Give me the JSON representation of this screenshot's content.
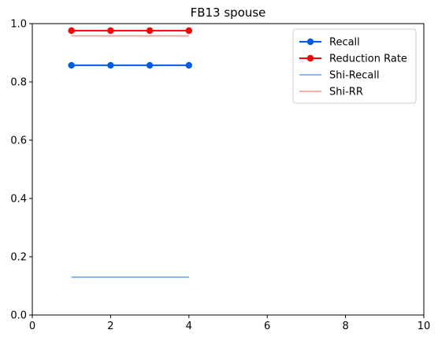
{
  "chart_data": {
    "type": "line",
    "title": "FB13 spouse",
    "xlabel": "",
    "ylabel": "",
    "xlim": [
      0,
      10
    ],
    "ylim": [
      0,
      1.0
    ],
    "xticks": [
      0,
      2,
      4,
      6,
      8,
      10
    ],
    "yticks": [
      0.0,
      0.2,
      0.4,
      0.6,
      0.8,
      1.0
    ],
    "xtick_labels": [
      "0",
      "2",
      "4",
      "6",
      "8",
      "10"
    ],
    "ytick_labels": [
      "0.0",
      "0.2",
      "0.4",
      "0.6",
      "0.8",
      "1.0"
    ],
    "grid": false,
    "legend_position": "upper-right",
    "series": [
      {
        "name": "Recall",
        "x": [
          1,
          2,
          3,
          4
        ],
        "y": [
          0.857,
          0.857,
          0.857,
          0.857
        ],
        "color": "#005ce6",
        "marker": "circle"
      },
      {
        "name": "Reduction Rate",
        "x": [
          1,
          2,
          3,
          4
        ],
        "y": [
          0.976,
          0.976,
          0.976,
          0.976
        ],
        "color": "#ff0000",
        "marker": "circle"
      },
      {
        "name": "Shi-Recall",
        "x": [
          1,
          4
        ],
        "y": [
          0.13,
          0.13
        ],
        "color": "#6fa3f7",
        "marker": "none"
      },
      {
        "name": "Shi-RR",
        "x": [
          1,
          4
        ],
        "y": [
          0.958,
          0.958
        ],
        "color": "#f7968a",
        "marker": "none"
      }
    ]
  }
}
